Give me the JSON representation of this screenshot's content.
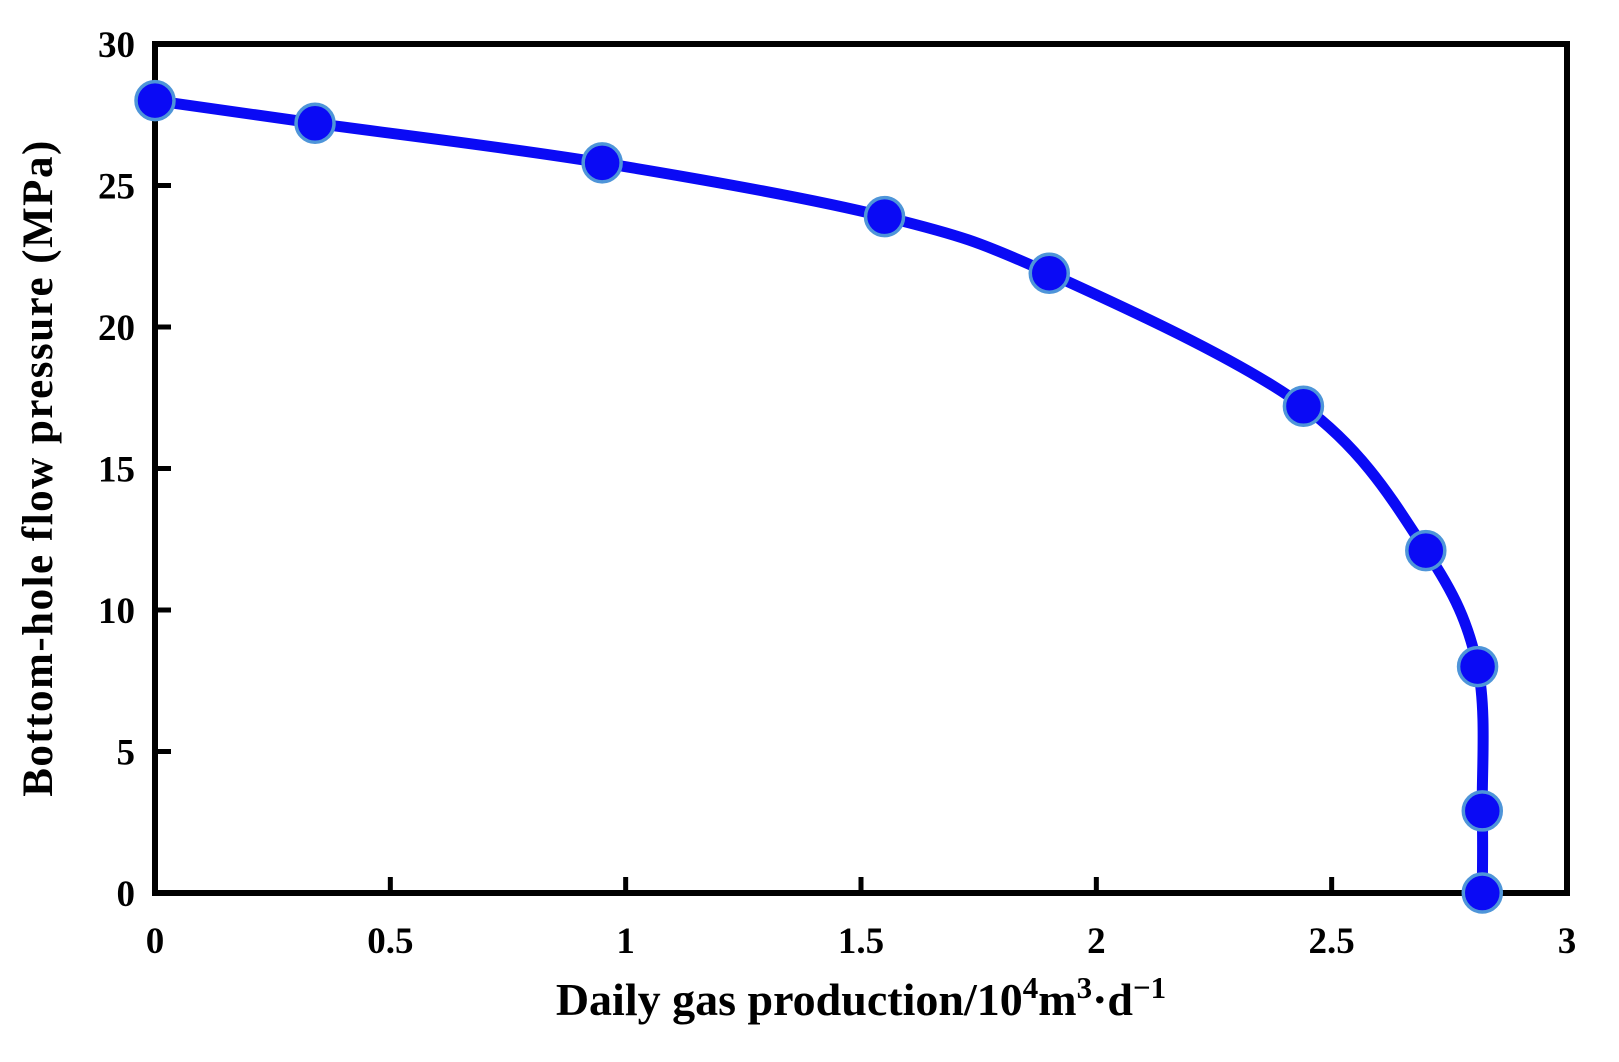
{
  "chart_data": {
    "type": "line",
    "title": "",
    "xlabel_plain": "Daily gas production/10(4)m(3)·d(-1)",
    "xlabel_segments": [
      {
        "t": "Daily gas production/10",
        "sup": false
      },
      {
        "t": "4",
        "sup": true
      },
      {
        "t": "m",
        "sup": false
      },
      {
        "t": "3",
        "sup": true
      },
      {
        "t": "·d",
        "sup": false
      },
      {
        "t": "−1",
        "sup": true
      }
    ],
    "ylabel": "Bottom-hole flow pressure (MPa)",
    "x": [
      0,
      0.34,
      0.95,
      1.55,
      1.9,
      2.44,
      2.7,
      2.81,
      2.82,
      2.82
    ],
    "y": [
      28,
      27.2,
      25.8,
      23.9,
      21.9,
      17.2,
      12.1,
      8,
      2.9,
      0
    ],
    "xlim": [
      0,
      3
    ],
    "ylim": [
      0,
      30
    ],
    "xticks": {
      "values": [
        0,
        0.5,
        1,
        1.5,
        2,
        2.5,
        3
      ],
      "labels": [
        "0",
        "0.5",
        "1",
        "1.5",
        "2",
        "2.5",
        "3"
      ]
    },
    "yticks": {
      "values": [
        0,
        5,
        10,
        15,
        20,
        25,
        30
      ],
      "labels": [
        "0",
        "5",
        "10",
        "15",
        "20",
        "25",
        "30"
      ]
    },
    "grid": false,
    "legend": null,
    "colors": {
      "line": "#0a0af5",
      "marker_fill": "#0a0af5",
      "marker_edge": "#4e95d9",
      "axis": "#000000",
      "background": "#ffffff"
    },
    "line_width": 11,
    "marker_radius": 19,
    "smoothed": true
  }
}
